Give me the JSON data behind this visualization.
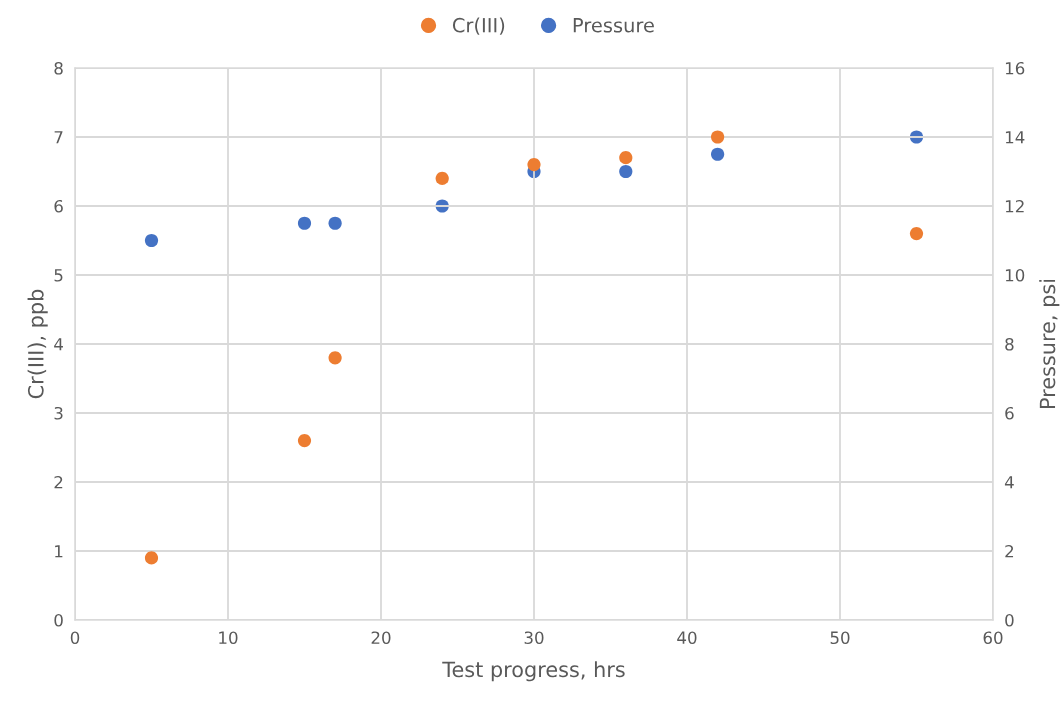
{
  "chart_data": {
    "type": "scatter",
    "xlabel": "Test progress, hrs",
    "ylabel": "Cr(III), ppb",
    "y2label": "Pressure, psi",
    "x": [
      5,
      15,
      17,
      24,
      30,
      36,
      42,
      55
    ],
    "series": [
      {
        "name": "Cr(III)",
        "color": "#ed7d31",
        "values": [
          0.9,
          2.6,
          3.8,
          6.4,
          6.6,
          6.7,
          7.0,
          5.6
        ]
      },
      {
        "name": "Pressure",
        "color": "#4472c4",
        "axis": "y2",
        "values": [
          11,
          11.5,
          11.5,
          12,
          13,
          13,
          13.5,
          14
        ]
      }
    ],
    "xlim": [
      0,
      60
    ],
    "xticks": [
      0,
      10,
      20,
      30,
      40,
      50,
      60
    ],
    "ylim": [
      0,
      8
    ],
    "yticks": [
      0,
      1,
      2,
      3,
      4,
      5,
      6,
      7,
      8
    ],
    "y2lim": [
      0,
      16
    ],
    "y2ticks": [
      0,
      2,
      4,
      6,
      8,
      10,
      12,
      14,
      16
    ],
    "grid": true,
    "legend": "top",
    "marker": "circle"
  }
}
